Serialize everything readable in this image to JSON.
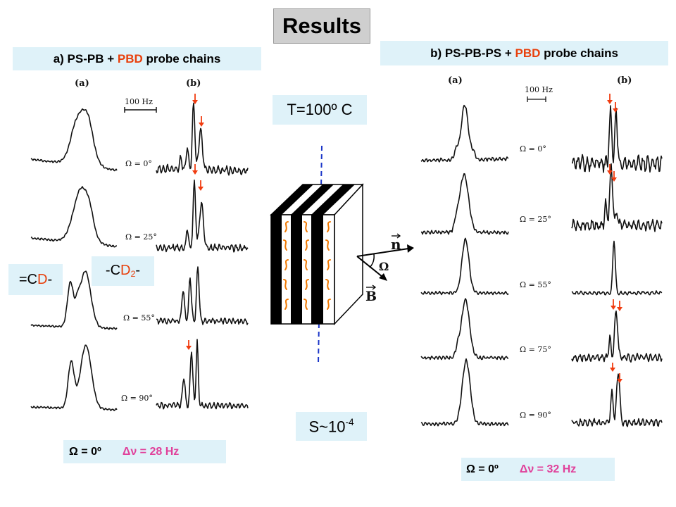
{
  "title": "Results",
  "panel_a": {
    "label": {
      "prefix": "a) PS-PB + ",
      "highlight": "PBD",
      "suffix": " probe chains"
    },
    "column_a": "(a)",
    "column_b": "(b)",
    "scale_bar": "100 Hz",
    "angles": [
      "Ω = 0°",
      "Ω = 25°",
      "Ω = 55°",
      "Ω = 90°"
    ],
    "result": {
      "omega": "Ω = 0º",
      "splitting": "Δν = 28 Hz"
    }
  },
  "panel_b": {
    "label": {
      "prefix": "b) PS-PB-PS + ",
      "highlight": "PBD",
      "suffix": " probe chains"
    },
    "column_a": "(a)",
    "column_b": "(b)",
    "scale_bar": "100 Hz",
    "angles": [
      "Ω = 0°",
      "Ω = 25°",
      "Ω = 55°",
      "Ω = 75°",
      "Ω = 90°"
    ],
    "result": {
      "omega": "Ω = 0º",
      "splitting": "Δν = 32 Hz"
    }
  },
  "temperature": "T=100º C",
  "order_parameter": {
    "base": "S~10",
    "exponent": "-4"
  },
  "group_cd": {
    "pre": "=C",
    "atom": "D",
    "post": "-"
  },
  "group_cd2": {
    "pre": "-C",
    "atom": "D",
    "sub": "2",
    "post": "-"
  },
  "diagram": {
    "normal": "n",
    "angle": "Ω",
    "field": "B"
  },
  "colors": {
    "highlight_red": "#e8400c",
    "splitting_magenta": "#e0409a",
    "label_box": "#dff2f9",
    "title_box": "#cfcfcf",
    "director_blue": "#1a35c8",
    "chain_orange": "#f07800",
    "arrow_red": "#f03c10"
  }
}
